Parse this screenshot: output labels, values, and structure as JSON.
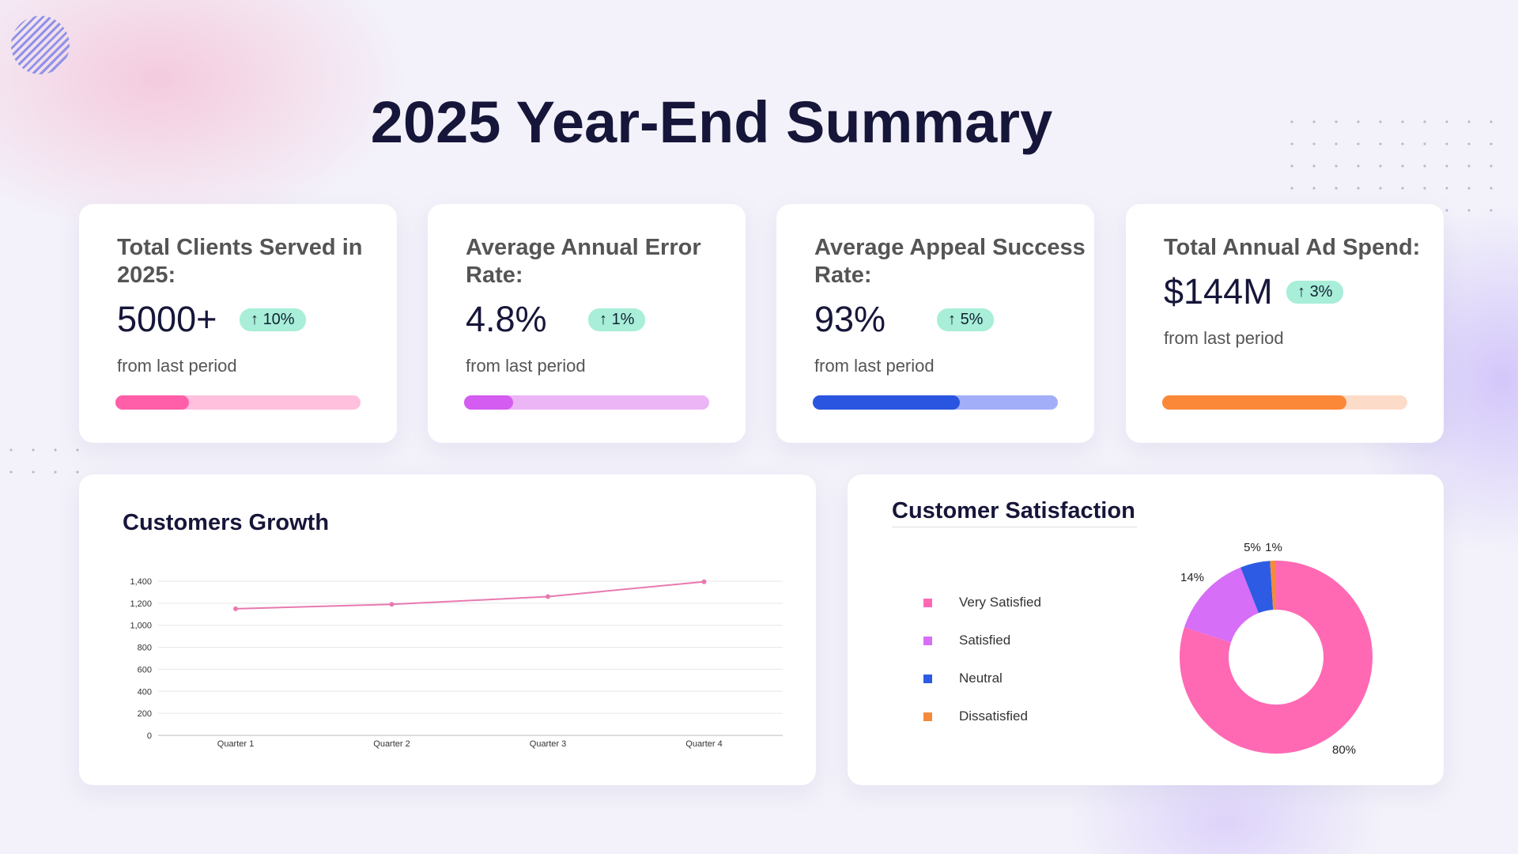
{
  "title": "2025 Year-End Summary",
  "kpis": [
    {
      "label": "Total Clients Served in 2025:",
      "value": "5000+",
      "change": "10%",
      "sub": "from last period",
      "progress": 30,
      "fill": "#ff5fa8",
      "track": "#ffc0de"
    },
    {
      "label": "Average Annual Error Rate:",
      "value": "4.8%",
      "change": "1%",
      "sub": "from last period",
      "progress": 20,
      "fill": "#d45cf0",
      "track": "#ecb5f5"
    },
    {
      "label": "Average Appeal Success Rate:",
      "value": "93%",
      "change": "5%",
      "sub": "from last period",
      "progress": 60,
      "fill": "#2a55e0",
      "track": "#a3aef8"
    },
    {
      "label": "Total Annual Ad Spend:",
      "value": "$144M",
      "change": "3%",
      "sub": "from last period",
      "progress": 75,
      "fill": "#fb8838",
      "track": "#fcdcc8"
    }
  ],
  "chart_data": [
    {
      "type": "line",
      "title": "Customers Growth",
      "categories": [
        "Quarter 1",
        "Quarter 2",
        "Quarter 3",
        "Quarter 4"
      ],
      "values": [
        1150,
        1190,
        1260,
        1395
      ],
      "ylim": [
        0,
        1400
      ],
      "yticks": [
        "0",
        "200",
        "400",
        "600",
        "800",
        "1,000",
        "1,200",
        "1,400"
      ],
      "grid": true,
      "color": "#e879b0"
    },
    {
      "type": "pie",
      "title": "Customer Satisfaction",
      "donut": true,
      "legend": "left",
      "labels": [
        "Very Satisfied",
        "Satisfied",
        "Neutral",
        "Dissatisfied"
      ],
      "values": [
        80,
        14,
        5,
        1
      ],
      "value_labels": [
        "80%",
        "14%",
        "5%",
        "1%"
      ],
      "colors": [
        "#ff69b4",
        "#d66ef7",
        "#2d5be3",
        "#f58a3a"
      ]
    }
  ]
}
